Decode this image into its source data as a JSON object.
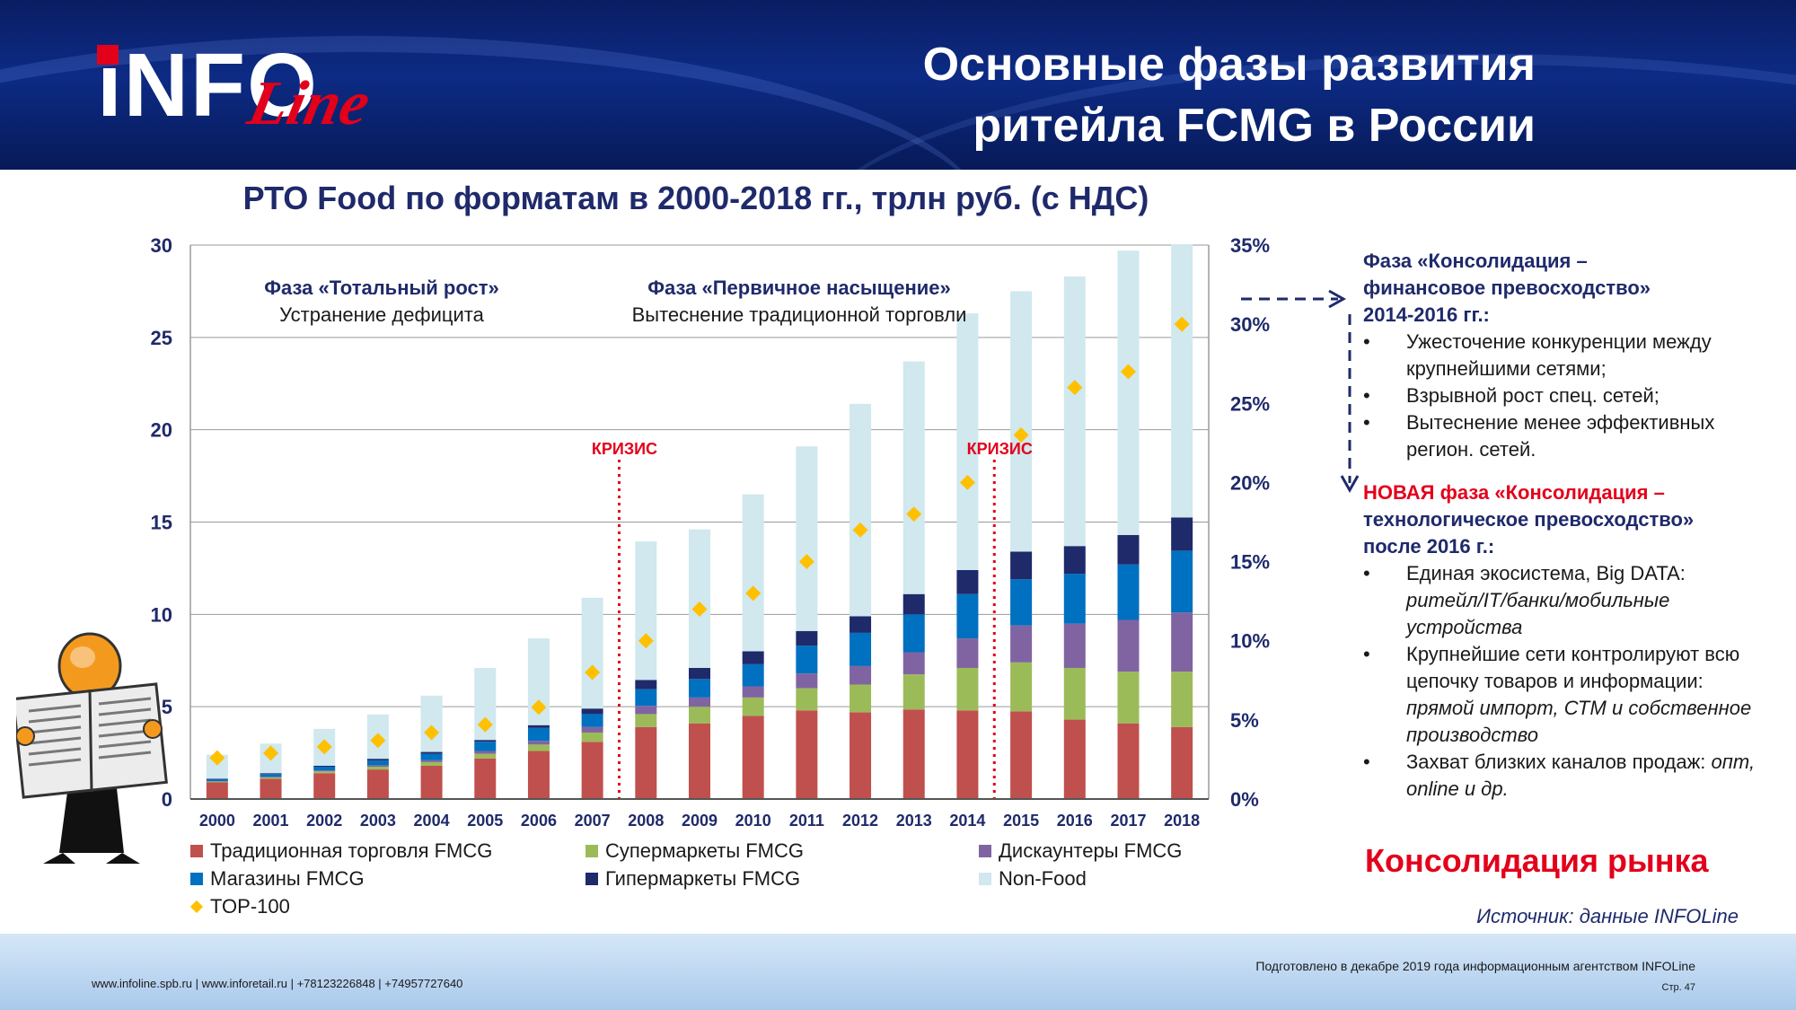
{
  "header": {
    "logo_main": "iNFO",
    "logo_script": "Line",
    "title_line1": "Основные фазы развития",
    "title_line2": "ритейла FCMG в России"
  },
  "chart_title": "РТО Food по форматам в 2000-2018 гг., трлн руб. (с НДС)",
  "phases": {
    "total_growth_title": "Фаза «Тотальный рост»",
    "total_growth_sub": "Устранение дефицита",
    "saturation_title": "Фаза «Первичное насыщение»",
    "saturation_sub": "Вытеснение традиционной торговли",
    "crisis_label": "КРИЗИС"
  },
  "chart_data": {
    "type": "bar",
    "stacked": true,
    "title": "РТО Food по форматам в 2000-2018 гг., трлн руб. (с НДС)",
    "categories": [
      "2000",
      "2001",
      "2002",
      "2003",
      "2004",
      "2005",
      "2006",
      "2007",
      "2008",
      "2009",
      "2010",
      "2011",
      "2012",
      "2013",
      "2014",
      "2015",
      "2016",
      "2017",
      "2018"
    ],
    "ylim": [
      0,
      30
    ],
    "yticks": [
      "0",
      "5",
      "10",
      "15",
      "20",
      "25",
      "30"
    ],
    "y2lim": [
      0,
      35
    ],
    "y2ticks": [
      "0%",
      "5%",
      "10%",
      "15%",
      "20%",
      "25%",
      "30%",
      "35%"
    ],
    "grid": true,
    "series": [
      {
        "name": "Традиционная торговля FMCG",
        "color": "#c0504d",
        "values": [
          0.9,
          1.1,
          1.4,
          1.6,
          1.8,
          2.2,
          2.6,
          3.1,
          3.9,
          4.1,
          4.5,
          4.8,
          4.7,
          4.85,
          4.8,
          4.75,
          4.3,
          4.1,
          3.9
        ]
      },
      {
        "name": "Супермаркеты FMCG",
        "color": "#9bbb59",
        "values": [
          0.05,
          0.07,
          0.1,
          0.15,
          0.2,
          0.25,
          0.35,
          0.5,
          0.7,
          0.9,
          1.0,
          1.2,
          1.5,
          1.9,
          2.3,
          2.65,
          2.8,
          2.8,
          3.0
        ]
      },
      {
        "name": "Дискаунтеры FMCG",
        "color": "#8064a2",
        "values": [
          0.02,
          0.03,
          0.05,
          0.08,
          0.1,
          0.15,
          0.2,
          0.3,
          0.45,
          0.5,
          0.6,
          0.8,
          1.0,
          1.2,
          1.6,
          2.0,
          2.4,
          2.8,
          3.2
        ]
      },
      {
        "name": "Магазины FMCG",
        "color": "#0070c0",
        "values": [
          0.1,
          0.15,
          0.2,
          0.25,
          0.35,
          0.5,
          0.7,
          0.7,
          0.9,
          1.0,
          1.2,
          1.5,
          1.8,
          2.05,
          2.4,
          2.5,
          2.7,
          3.0,
          3.35
        ]
      },
      {
        "name": "Гипермаркеты FMCG",
        "color": "#1f2a6b",
        "values": [
          0.03,
          0.05,
          0.05,
          0.1,
          0.1,
          0.1,
          0.15,
          0.3,
          0.5,
          0.6,
          0.7,
          0.8,
          0.9,
          1.1,
          1.3,
          1.5,
          1.5,
          1.6,
          1.8
        ]
      },
      {
        "name": "Non-Food",
        "color": "#d0e8ee",
        "values": [
          1.3,
          1.6,
          2.0,
          2.4,
          3.05,
          3.9,
          4.7,
          6.0,
          7.5,
          7.5,
          8.5,
          10.0,
          11.5,
          12.6,
          13.9,
          14.1,
          14.6,
          15.4,
          14.8
        ]
      },
      {
        "name": "TOP-100",
        "color": "#ffc000",
        "axis": "y2",
        "marker": "diamond",
        "values": [
          2.6,
          2.9,
          3.3,
          3.7,
          4.2,
          4.7,
          5.8,
          8,
          10,
          12,
          13,
          15,
          17,
          18,
          20,
          23,
          26,
          27,
          30
        ]
      }
    ],
    "crisis_years": [
      "2008",
      "2015"
    ]
  },
  "legend": {
    "traditional": "Традиционная торговля FMCG",
    "supermarkets": "Супермаркеты FMCG",
    "discounters": "Дискаунтеры FMCG",
    "stores": "Магазины FMCG",
    "hypermarkets": "Гипермаркеты FMCG",
    "nonfood": "Non-Food",
    "top100": "TOP-100"
  },
  "panel": {
    "phase1_line1": "Фаза «Консолидация –",
    "phase1_line2": "финансовое превосходство»",
    "phase1_line3": "2014-2016 гг.:",
    "phase1_b1": "Ужесточение конкуренции между крупнейшими сетями;",
    "phase1_b2": "Взрывной рост спец. сетей;",
    "phase1_b3": "Вытеснение менее эффективных регион. сетей.",
    "phase2_line1": "НОВАЯ фаза «Консолидация –",
    "phase2_line2": "технологическое превосходство»",
    "phase2_line3": "после 2016 г.:",
    "phase2_b1_text": "Единая экосистема, Big DATA:",
    "phase2_b1_italic": "ритейл/IT/банки/мобильные устройства",
    "phase2_b2_text": "Крупнейшие сети контролируют всю цепочку товаров и информации:",
    "phase2_b2_italic": "прямой импорт,  СТМ и собственное производство",
    "phase2_b3_text": "Захват близких каналов продаж:",
    "phase2_b3_italic": "опт, online и др."
  },
  "consolidation": "Консолидация рынка",
  "source": "Источник: данные INFOLine",
  "footer": {
    "contacts": "www.infoline.spb.ru | www.inforetail.ru | +78123226848 | +74957727640",
    "prepared": "Подготовлено в декабре 2019 года информационным агентством INFOLine",
    "page": "Стр. 47"
  }
}
